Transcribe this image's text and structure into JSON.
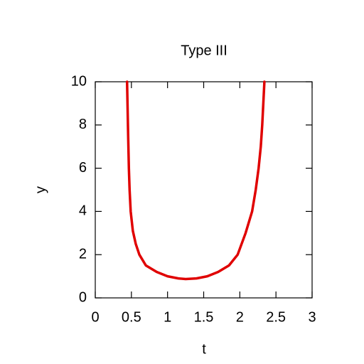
{
  "chart_data": {
    "type": "line",
    "title": "Type III",
    "x_label": "t",
    "y_label": "y",
    "x": [
      0.44,
      0.455,
      0.465,
      0.475,
      0.49,
      0.52,
      0.56,
      0.61,
      0.7,
      0.85,
      1.0,
      1.15,
      1.25,
      1.4,
      1.55,
      1.7,
      1.85,
      1.97,
      2.08,
      2.17,
      2.22,
      2.26,
      2.29,
      2.31,
      2.34
    ],
    "series": [
      {
        "name": "y",
        "color": "#e00000",
        "values": [
          10,
          7.5,
          6,
          5,
          4,
          3.1,
          2.5,
          2,
          1.5,
          1.2,
          1.0,
          0.9,
          0.87,
          0.9,
          1.0,
          1.2,
          1.5,
          2,
          3,
          4,
          5,
          6,
          7,
          8,
          10
        ]
      }
    ],
    "xlim": [
      0,
      3
    ],
    "ylim": [
      0,
      10
    ],
    "xticks": [
      0,
      0.5,
      1,
      1.5,
      2,
      2.5,
      3
    ],
    "yticks": [
      0,
      2,
      4,
      6,
      8,
      10
    ],
    "grid": false
  }
}
